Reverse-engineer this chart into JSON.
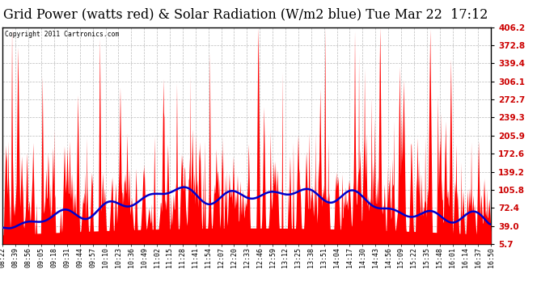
{
  "title": "Grid Power (watts red) & Solar Radiation (W/m2 blue) Tue Mar 22  17:12",
  "copyright_text": "Copyright 2011 Cartronics.com",
  "y_ticks": [
    5.7,
    39.0,
    72.4,
    105.8,
    139.2,
    172.6,
    205.9,
    239.3,
    272.7,
    306.1,
    339.4,
    372.8,
    406.2
  ],
  "x_labels": [
    "08:22",
    "08:39",
    "08:56",
    "09:05",
    "09:18",
    "09:31",
    "09:44",
    "09:57",
    "10:10",
    "10:23",
    "10:36",
    "10:49",
    "11:02",
    "11:15",
    "11:28",
    "11:41",
    "11:54",
    "12:07",
    "12:20",
    "12:33",
    "12:46",
    "12:59",
    "13:12",
    "13:25",
    "13:38",
    "13:51",
    "14:04",
    "14:17",
    "14:30",
    "14:43",
    "14:56",
    "15:09",
    "15:22",
    "15:35",
    "15:48",
    "16:01",
    "16:14",
    "16:37",
    "16:50"
  ],
  "background_color": "#ffffff",
  "grid_color": "#bbbbbb",
  "red_color": "#ff0000",
  "blue_color": "#0000cc",
  "ymin": 5.7,
  "ymax": 406.2
}
